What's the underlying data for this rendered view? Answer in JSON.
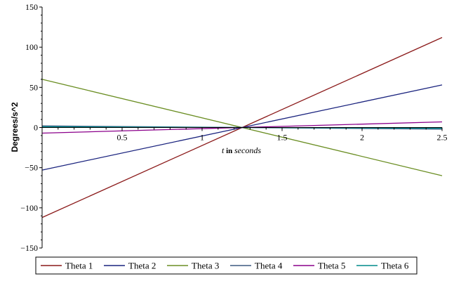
{
  "chart_data": {
    "type": "line",
    "xlabel_prefix": "t",
    "xlabel_in": " in ",
    "xlabel_suffix": "seconds",
    "ylabel": "Degrees/s^2",
    "xlim": [
      0,
      2.5
    ],
    "ylim": [
      -150,
      150
    ],
    "x_ticks": [
      {
        "value": 0.5,
        "label": "0.5"
      },
      {
        "value": 1,
        "label": "1"
      },
      {
        "value": 1.5,
        "label": "1.5"
      },
      {
        "value": 2,
        "label": "2"
      },
      {
        "value": 2.5,
        "label": "2.5"
      }
    ],
    "y_ticks": [
      {
        "value": 150,
        "label": "150"
      },
      {
        "value": 100,
        "label": "100"
      },
      {
        "value": 50,
        "label": "50"
      },
      {
        "value": 0,
        "label": "0"
      },
      {
        "value": -50,
        "label": "−50"
      },
      {
        "value": -100,
        "label": "−100"
      },
      {
        "value": -150,
        "label": "−150"
      }
    ],
    "grid": false,
    "legend_position": "bottom",
    "series": [
      {
        "name": "Theta 1",
        "color": "#8b1a1a",
        "x": [
          0,
          2.5
        ],
        "y": [
          -112,
          112
        ]
      },
      {
        "name": "Theta 2",
        "color": "#1a237e",
        "x": [
          0,
          2.5
        ],
        "y": [
          -53,
          53
        ]
      },
      {
        "name": "Theta 3",
        "color": "#6b8e23",
        "x": [
          0,
          2.5
        ],
        "y": [
          60,
          -60
        ]
      },
      {
        "name": "Theta 4",
        "color": "#3d5a80",
        "x": [
          0,
          2.5
        ],
        "y": [
          2,
          -2
        ]
      },
      {
        "name": "Theta 5",
        "color": "#8b008b",
        "x": [
          0,
          2.5
        ],
        "y": [
          -7,
          7
        ]
      },
      {
        "name": "Theta 6",
        "color": "#008b8b",
        "x": [
          0,
          2.5
        ],
        "y": [
          1,
          -1
        ]
      }
    ]
  }
}
